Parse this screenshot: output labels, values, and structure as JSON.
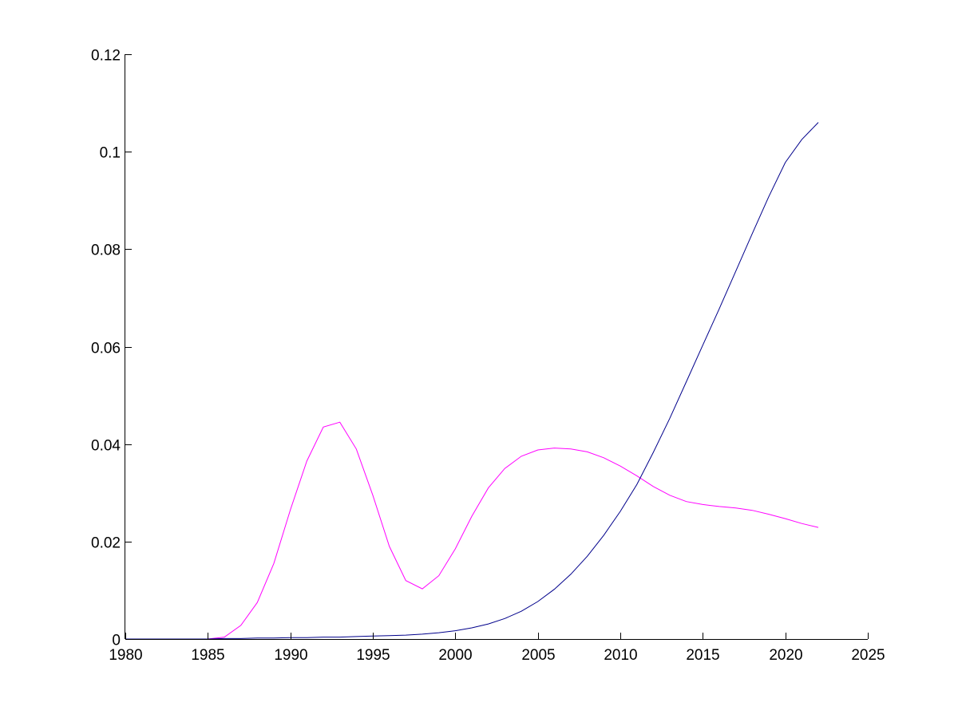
{
  "chart_data": {
    "type": "line",
    "title": "",
    "xlabel": "",
    "ylabel": "",
    "xlim": [
      1980,
      2025
    ],
    "ylim": [
      0,
      0.12
    ],
    "grid": false,
    "legend": "none",
    "x_ticks": [
      1980,
      1985,
      1990,
      1995,
      2000,
      2005,
      2010,
      2015,
      2020,
      2025
    ],
    "x_tick_labels": [
      "1980",
      "1985",
      "1990",
      "1995",
      "2000",
      "2005",
      "2010",
      "2015",
      "2020",
      "2025"
    ],
    "y_ticks": [
      0,
      0.02,
      0.04,
      0.06,
      0.08,
      0.1,
      0.12
    ],
    "y_tick_labels": [
      "0",
      "0.02",
      "0.04",
      "0.06",
      "0.08",
      "0.1",
      "0.12"
    ],
    "x": [
      1980,
      1981,
      1982,
      1983,
      1984,
      1985,
      1986,
      1987,
      1988,
      1989,
      1990,
      1991,
      1992,
      1993,
      1994,
      1995,
      1996,
      1997,
      1998,
      1999,
      2000,
      2001,
      2002,
      2003,
      2004,
      2005,
      2006,
      2007,
      2008,
      2009,
      2010,
      2011,
      2012,
      2013,
      2014,
      2015,
      2016,
      2017,
      2018,
      2019,
      2020,
      2021,
      2022
    ],
    "series": [
      {
        "color": "#ff00ff",
        "values": [
          0,
          0,
          0,
          0,
          0,
          0,
          0.0004,
          0.0028,
          0.0075,
          0.0155,
          0.0265,
          0.0365,
          0.0435,
          0.0445,
          0.039,
          0.0295,
          0.019,
          0.012,
          0.0103,
          0.013,
          0.0185,
          0.0252,
          0.031,
          0.035,
          0.0375,
          0.0388,
          0.0392,
          0.039,
          0.0384,
          0.0372,
          0.0355,
          0.0335,
          0.0313,
          0.0295,
          0.0282,
          0.0276,
          0.0272,
          0.0269,
          0.0264,
          0.0256,
          0.0247,
          0.0237,
          0.0229
        ]
      },
      {
        "color": "#00008b",
        "values": [
          0,
          0,
          0,
          0,
          0,
          0,
          0.0001,
          0.0001,
          0.0002,
          0.0002,
          0.0003,
          0.0003,
          0.0004,
          0.0004,
          0.0005,
          0.0006,
          0.0007,
          0.0008,
          0.001,
          0.0013,
          0.0017,
          0.0023,
          0.0031,
          0.0042,
          0.0057,
          0.0077,
          0.0102,
          0.0133,
          0.017,
          0.0213,
          0.0262,
          0.0317,
          0.0383,
          0.0453,
          0.0528,
          0.0603,
          0.0678,
          0.0755,
          0.0832,
          0.0908,
          0.0978,
          0.1025,
          0.106
        ]
      }
    ]
  }
}
